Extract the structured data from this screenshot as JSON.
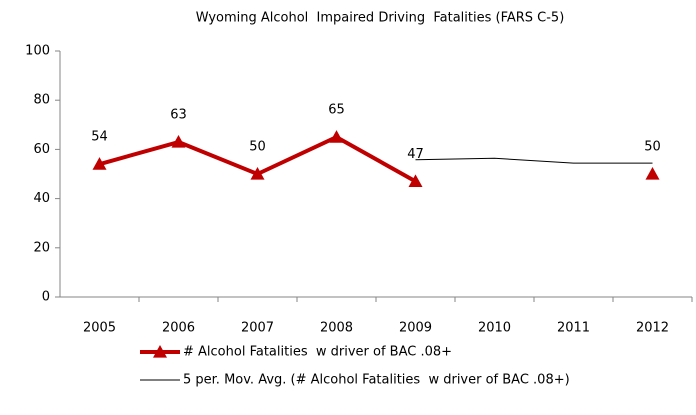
{
  "chart_data": {
    "type": "line",
    "title": "Wyoming Alcohol  Impaired Driving  Fatalities (FARS C-5)",
    "categories": [
      "2005",
      "2006",
      "2007",
      "2008",
      "2009",
      "2010",
      "2011",
      "2012"
    ],
    "series": [
      {
        "name": "# Alcohol Fatalities  w driver of BAC .08+",
        "color": "#c00000",
        "values": [
          54,
          63,
          50,
          65,
          47,
          null,
          null,
          50
        ],
        "marker": "triangle",
        "data_labels": true
      },
      {
        "name": "5 per. Mov. Avg. (# Alcohol Fatalities  w driver of BAC .08+)",
        "color": "#000000",
        "values": [
          null,
          null,
          null,
          null,
          55.8,
          56.4,
          54.4,
          54.4
        ]
      }
    ],
    "ylim": [
      0,
      100
    ],
    "yticks": [
      0,
      20,
      40,
      60,
      80,
      100
    ],
    "grid": false,
    "legend": "bottom"
  }
}
